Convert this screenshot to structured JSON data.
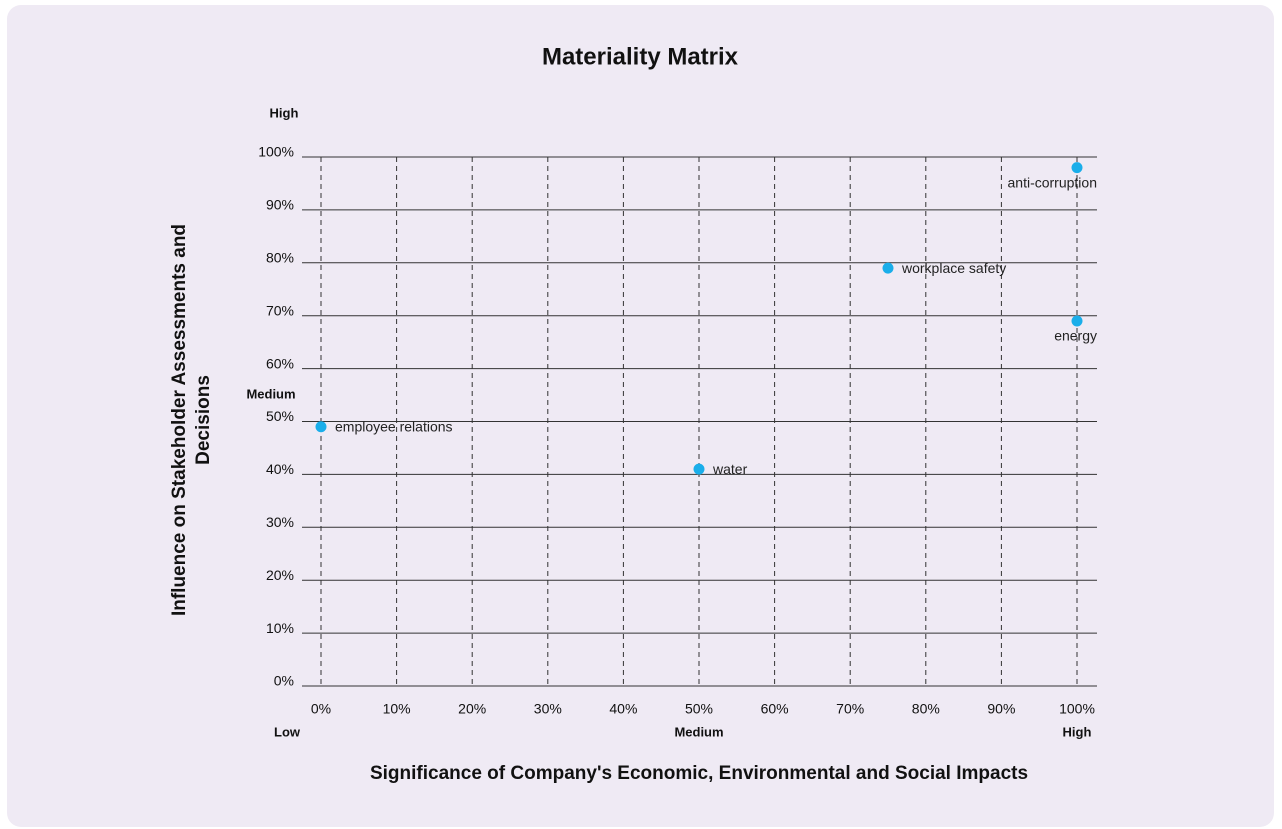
{
  "chart_data": {
    "type": "scatter",
    "title": "Materiality Matrix",
    "xlabel": "Significance of Company's Economic, Environmental and Social Impacts",
    "ylabel": [
      "Influence on Stakeholder Assessments and",
      "Decisions"
    ],
    "x": [
      0,
      50,
      75,
      100,
      100
    ],
    "values": [
      49,
      41,
      79,
      69,
      98
    ],
    "point_labels": [
      "employee relations",
      "water",
      "workplace safety",
      "energy",
      "anti-corruption"
    ],
    "color": "#1aaeea",
    "xlim": [
      0,
      100
    ],
    "ylim": [
      0,
      100
    ],
    "xticks": [
      {
        "value": 0,
        "label": "0%"
      },
      {
        "value": 10,
        "label": "10%"
      },
      {
        "value": 20,
        "label": "20%"
      },
      {
        "value": 30,
        "label": "30%"
      },
      {
        "value": 40,
        "label": "40%"
      },
      {
        "value": 50,
        "label": "50%"
      },
      {
        "value": 60,
        "label": "60%"
      },
      {
        "value": 70,
        "label": "70%"
      },
      {
        "value": 80,
        "label": "80%"
      },
      {
        "value": 90,
        "label": "90%"
      },
      {
        "value": 100,
        "label": "100%"
      }
    ],
    "yticks": [
      {
        "value": 0,
        "label": "0%"
      },
      {
        "value": 10,
        "label": "10%"
      },
      {
        "value": 20,
        "label": "20%"
      },
      {
        "value": 30,
        "label": "30%"
      },
      {
        "value": 40,
        "label": "40%"
      },
      {
        "value": 50,
        "label": "50%"
      },
      {
        "value": 60,
        "label": "60%"
      },
      {
        "value": 70,
        "label": "70%"
      },
      {
        "value": 80,
        "label": "80%"
      },
      {
        "value": 90,
        "label": "90%"
      },
      {
        "value": 100,
        "label": "100%"
      }
    ],
    "x_level_labels": [
      "Low",
      "Medium",
      "High"
    ],
    "y_level_labels": [
      "High",
      "Medium"
    ],
    "grid": true
  }
}
